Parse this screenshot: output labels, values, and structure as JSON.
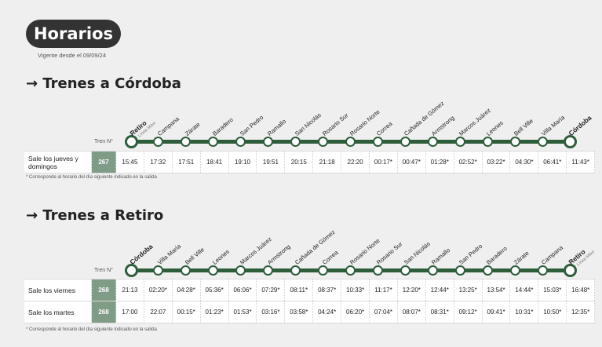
{
  "title": "Horarios",
  "validity": "Vigente desde el 09/09/24",
  "tren_label": "Tren N°",
  "sections": [
    {
      "title": "→ Trenes a Córdoba",
      "stations": [
        {
          "name": "Retiro",
          "sub": "Línea Mitre",
          "bold": true
        },
        {
          "name": "Campana"
        },
        {
          "name": "Zárate"
        },
        {
          "name": "Baradero"
        },
        {
          "name": "San Pedro"
        },
        {
          "name": "Ramallo"
        },
        {
          "name": "San Nicolás"
        },
        {
          "name": "Rosario Sur"
        },
        {
          "name": "Rosario Norte"
        },
        {
          "name": "Correa"
        },
        {
          "name": "Cañada de Gómez"
        },
        {
          "name": "Armstrong"
        },
        {
          "name": "Marcos Juárez"
        },
        {
          "name": "Leones"
        },
        {
          "name": "Bell Ville"
        },
        {
          "name": "Villa María"
        },
        {
          "name": "Córdoba",
          "bold": true
        }
      ],
      "rows": [
        {
          "label": "Sale los jueves y domingos",
          "train": "267",
          "times": [
            "15:45",
            "17:32",
            "17:51",
            "18:41",
            "19:10",
            "19:51",
            "20:15",
            "21:18",
            "22:20",
            "00:17*",
            "00:47*",
            "01:28*",
            "02:52*",
            "03:22*",
            "04:30*",
            "06:41*",
            "11:43*"
          ]
        }
      ],
      "note": "* Corresponde al horario del día siguiente indicado en la salida"
    },
    {
      "title": "→ Trenes a Retiro",
      "stations": [
        {
          "name": "Córdoba",
          "bold": true
        },
        {
          "name": "Villa María"
        },
        {
          "name": "Bell Ville"
        },
        {
          "name": "Leones"
        },
        {
          "name": "Marcos Juárez"
        },
        {
          "name": "Armstrong"
        },
        {
          "name": "Cañada de Gómez"
        },
        {
          "name": "Correa"
        },
        {
          "name": "Rosario Norte"
        },
        {
          "name": "Rosario Sur"
        },
        {
          "name": "San Nicolás"
        },
        {
          "name": "Ramallo"
        },
        {
          "name": "San Pedro"
        },
        {
          "name": "Baradero"
        },
        {
          "name": "Zárate"
        },
        {
          "name": "Campana"
        },
        {
          "name": "Retiro",
          "sub": "Línea Mitre",
          "bold": true
        }
      ],
      "rows": [
        {
          "label": "Sale los viernes",
          "train": "268",
          "times": [
            "21:13",
            "02:20*",
            "04:28*",
            "05:36*",
            "06:06*",
            "07:29*",
            "08:11*",
            "08:37*",
            "10:33*",
            "11:17*",
            "12:20*",
            "12:44*",
            "13:25*",
            "13:54*",
            "14:44*",
            "15:03*",
            "16:48*"
          ]
        },
        {
          "label": "Sale los martes",
          "train": "268",
          "times": [
            "17:00",
            "22:07",
            "00:15*",
            "01:23*",
            "01:53*",
            "03:16*",
            "03:58*",
            "04:24*",
            "06:20*",
            "07:04*",
            "08:07*",
            "08:31*",
            "09:12*",
            "09:41*",
            "10:31*",
            "10:50*",
            "12:35*"
          ]
        }
      ],
      "note": "* Corresponde al horario del día siguiente indicado en la salida"
    }
  ]
}
